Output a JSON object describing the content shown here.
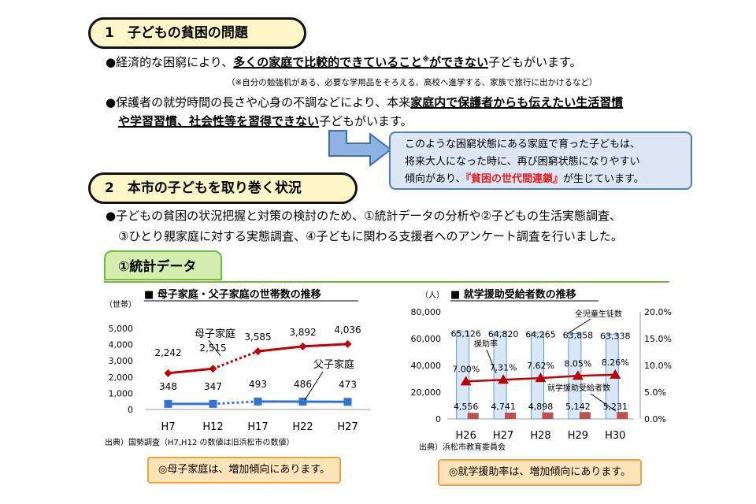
{
  "section1": {
    "heading": "1　子どもの貧困の問題",
    "b1": {
      "bullet": "●",
      "pre": "経済的な困窮により、",
      "emph": "多くの家庭で比較的できていること",
      "sup": "※",
      "emph2": "ができない",
      "post": "子どもがいます。"
    },
    "note": "（※自分の勉強机がある、必要な学用品をそろえる、高校へ進学する、家族で旅行に出かけるなど）",
    "b2": {
      "bullet": "●",
      "pre": "保護者の就労時間の長さや心身の不調などにより、本来",
      "emph": "家庭内で保護者からも伝えたい生活習慣",
      "emph_line2": "や学習習慣、社会性等を習得できない",
      "post": "子どもがいます。"
    },
    "callout": {
      "l1": "このような困窮状態にある家庭で育った子どもは、",
      "l2": "将来大人になった時に、再び困窮状態になりやすい",
      "l3_pre": "傾向があり、",
      "l3_red": "『貧困の世代間連鎖』",
      "l3_post": "が生じています。"
    }
  },
  "section2": {
    "heading": "2　本市の子どもを取り巻く状況",
    "b1": {
      "bullet": "●",
      "l1": "子どもの貧困の状況把握と対策の検討のため、①統計データの分析や②子どもの生活実態調査、",
      "l2": "③ひとり親家庭に対する実態調査、④子どもに関わる支援者へのアンケート調査を行いました。"
    },
    "tab": "①統計データ"
  },
  "colors": {
    "red": "#c00000",
    "blue": "#2e75d6",
    "light_blue": "#d9e8f7",
    "bar_red": "#c0504d",
    "tri": "#c00000"
  },
  "chart_data": [
    {
      "type": "line",
      "title": "■ 母子家庭・父子家庭の世帯数の推移",
      "ylabel": "（世帯）",
      "categories": [
        "H7",
        "H12",
        "H17",
        "H22",
        "H27"
      ],
      "ylim": [
        0,
        5000
      ],
      "yticks": [
        "5,000",
        "4,000",
        "3,000",
        "2,000",
        "1,000",
        "0"
      ],
      "series": [
        {
          "name": "母子家庭",
          "values": [
            2242,
            2515,
            3585,
            3892,
            4036
          ],
          "labels": [
            "2,242",
            "2,515",
            "3,585",
            "3,892",
            "4,036"
          ]
        },
        {
          "name": "父子家庭",
          "values": [
            348,
            347,
            493,
            486,
            473
          ],
          "labels": [
            "348",
            "347",
            "493",
            "486",
            "473"
          ]
        }
      ],
      "source": "出典）国勢調査（H7,H12 の数値は旧浜松市の数値）",
      "conclusion": "◎母子家庭は、増加傾向にあります。"
    },
    {
      "type": "bar",
      "title": "■ 就学援助受給者数の推移",
      "ylabel": "（人）",
      "categories": [
        "H26",
        "H27",
        "H28",
        "H29",
        "H30"
      ],
      "ylim": [
        0,
        80000
      ],
      "y2lim": [
        0,
        20
      ],
      "yticks": [
        "80,000",
        "60,000",
        "40,000",
        "20,000",
        "0"
      ],
      "y2ticks": [
        "20.0%",
        "15.0%",
        "10.0%",
        "5.0%",
        "0.0%"
      ],
      "series": [
        {
          "name": "全児童生徒数",
          "values": [
            65126,
            64820,
            64265,
            63858,
            63338
          ],
          "labels": [
            "65,126",
            "64,820",
            "64,265",
            "63,858",
            "63,338"
          ]
        },
        {
          "name": "就学援助受給者数",
          "values": [
            4556,
            4741,
            4898,
            5142,
            5231
          ],
          "labels": [
            "4,556",
            "4,741",
            "4,898",
            "5,142",
            "5,231"
          ]
        },
        {
          "name": "援助率",
          "values": [
            7.0,
            7.31,
            7.62,
            8.05,
            8.26
          ],
          "labels": [
            "7.00%",
            "7.31%",
            "7.62%",
            "8.05%",
            "8.26%"
          ]
        }
      ],
      "source": "出典）浜松市教育委員会",
      "conclusion": "◎就学援助率は、増加傾向にあります。"
    }
  ]
}
